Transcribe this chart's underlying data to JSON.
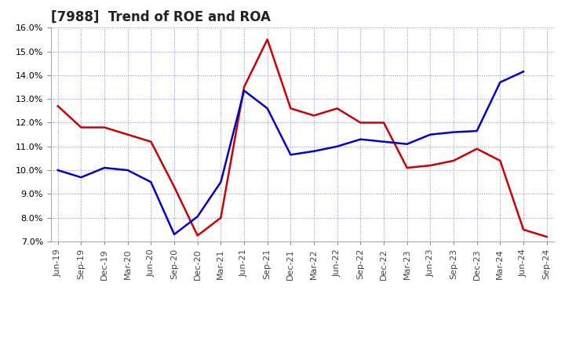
{
  "title": "[7988]  Trend of ROE and ROA",
  "x_labels": [
    "Jun-19",
    "Sep-19",
    "Dec-19",
    "Mar-20",
    "Jun-20",
    "Sep-20",
    "Dec-20",
    "Mar-21",
    "Jun-21",
    "Sep-21",
    "Dec-21",
    "Mar-22",
    "Jun-22",
    "Sep-22",
    "Dec-22",
    "Mar-23",
    "Jun-23",
    "Sep-23",
    "Dec-23",
    "Mar-24",
    "Jun-24",
    "Sep-24"
  ],
  "roe": [
    12.7,
    11.8,
    11.8,
    11.5,
    11.2,
    9.3,
    7.25,
    8.0,
    13.5,
    15.5,
    12.6,
    12.3,
    12.6,
    12.0,
    12.0,
    10.1,
    10.2,
    10.4,
    10.9,
    10.4,
    7.5,
    7.2
  ],
  "roa": [
    10.0,
    9.7,
    10.1,
    10.0,
    9.5,
    7.3,
    8.05,
    9.5,
    13.35,
    12.6,
    10.65,
    10.8,
    11.0,
    11.3,
    11.2,
    11.1,
    11.5,
    11.6,
    11.65,
    13.7,
    14.15,
    null
  ],
  "roe_color": "#cc0000",
  "roa_color": "#0000cc",
  "ylim": [
    7.0,
    16.0
  ],
  "yticks": [
    7.0,
    8.0,
    9.0,
    10.0,
    11.0,
    12.0,
    13.0,
    14.0,
    15.0,
    16.0
  ],
  "background_color": "#ffffff",
  "grid_color": "#8888bb",
  "title_fontsize": 12,
  "legend_fontsize": 10,
  "tick_fontsize": 8,
  "line_width": 1.8
}
